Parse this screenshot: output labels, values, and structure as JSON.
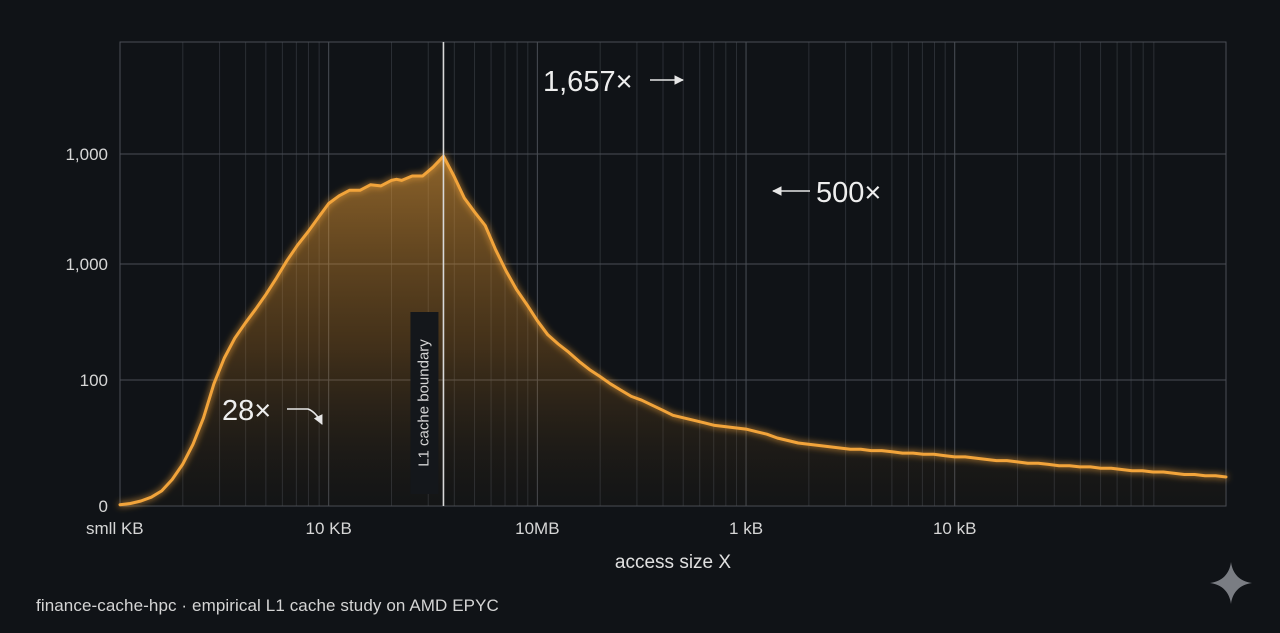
{
  "chart_data": {
    "type": "area",
    "title": "",
    "xlabel": "access size X",
    "ylabel": "",
    "x_tick_labels": [
      "smll KB",
      "10 KB",
      "10MB",
      "1 kB",
      "10 kB"
    ],
    "y_tick_labels": [
      "0",
      "100",
      "1,000",
      "1,000"
    ],
    "grid": true,
    "legend": "none",
    "series": [
      {
        "x": [
          0,
          0.1,
          0.2,
          0.3,
          0.4,
          0.5,
          0.6,
          0.7,
          0.8,
          0.9,
          1.0,
          1.1,
          1.2,
          1.3,
          1.4,
          1.5,
          1.6,
          1.7,
          1.8,
          1.9,
          2.0,
          2.1,
          2.2,
          2.3,
          2.4,
          2.5,
          2.6,
          2.65,
          2.7,
          2.8,
          2.9,
          3.0,
          3.1,
          3.2,
          3.3,
          3.4,
          3.5,
          3.6,
          3.7,
          3.8,
          3.9,
          4.0,
          4.1,
          4.2,
          4.3,
          4.4,
          4.5,
          4.6,
          4.7,
          4.8,
          4.9,
          5.0,
          5.1,
          5.2,
          5.3,
          5.4,
          5.5,
          5.6,
          5.7,
          5.8,
          5.9,
          6.0,
          6.1,
          6.2,
          6.3,
          6.4,
          6.5,
          6.6,
          6.7,
          6.8,
          6.9,
          7.0,
          7.1,
          7.2,
          7.3,
          7.4,
          7.5,
          7.6,
          7.7,
          7.8,
          7.9,
          8.0,
          8.1,
          8.2,
          8.3,
          8.4,
          8.5,
          8.6,
          8.7,
          8.8,
          8.9,
          9.0,
          9.1,
          9.2,
          9.3,
          9.4,
          9.5,
          9.6,
          9.7,
          9.8,
          9.9,
          10.0,
          10.1,
          10.2,
          10.3,
          10.4,
          10.5,
          10.6
        ],
        "y": [
          0.01,
          0.02,
          0.04,
          0.07,
          0.12,
          0.21,
          0.33,
          0.49,
          0.7,
          0.97,
          1.19,
          1.36,
          1.49,
          1.61,
          1.74,
          1.88,
          2.03,
          2.17,
          2.29,
          2.42,
          2.55,
          2.62,
          2.67,
          2.67,
          2.72,
          2.71,
          2.76,
          2.77,
          2.76,
          2.8,
          2.8,
          2.88,
          2.98,
          2.8,
          2.6,
          2.47,
          2.35,
          2.13,
          1.94,
          1.78,
          1.65,
          1.51,
          1.39,
          1.31,
          1.24,
          1.16,
          1.09,
          1.03,
          0.97,
          0.92,
          0.87,
          0.84,
          0.8,
          0.76,
          0.72,
          0.7,
          0.68,
          0.66,
          0.64,
          0.63,
          0.62,
          0.61,
          0.59,
          0.57,
          0.54,
          0.52,
          0.5,
          0.49,
          0.48,
          0.47,
          0.46,
          0.45,
          0.45,
          0.44,
          0.44,
          0.43,
          0.42,
          0.42,
          0.41,
          0.41,
          0.4,
          0.39,
          0.39,
          0.38,
          0.37,
          0.36,
          0.36,
          0.35,
          0.34,
          0.34,
          0.33,
          0.32,
          0.32,
          0.31,
          0.31,
          0.3,
          0.3,
          0.29,
          0.28,
          0.28,
          0.27,
          0.27,
          0.26,
          0.25,
          0.25,
          0.24,
          0.24,
          0.23
        ]
      }
    ],
    "annotations": [
      {
        "text": "1,657×",
        "x": 3.0,
        "y": 2.98
      },
      {
        "text": "500×",
        "x": 3.1,
        "y": 2.66
      },
      {
        "text": "28×",
        "x": 1.0,
        "y": 0.62
      }
    ],
    "reference_line": {
      "label": "L1 cache boundary",
      "x": 3.1
    }
  },
  "footer": {
    "caption": "finance-cache-hpc · empirical L1 cache study on AMD EPYC"
  },
  "colors": {
    "background": "#101317",
    "line": "#f2a43a",
    "grid_major": "#4a4e55",
    "grid_minor": "#2c3036",
    "text": "#e6e6e6"
  },
  "icons": {
    "watermark": "sparkle-icon"
  }
}
